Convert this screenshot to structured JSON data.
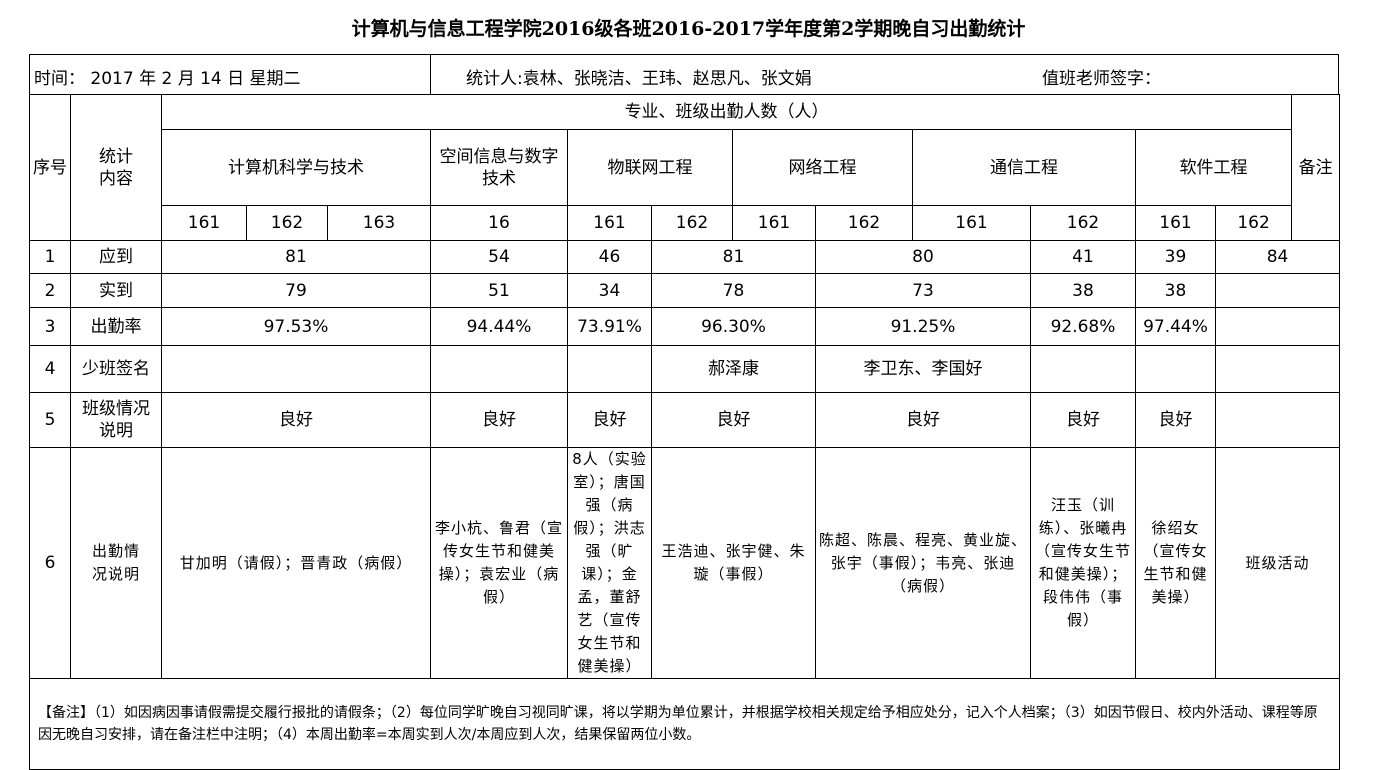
{
  "title": "计算机与信息工程学院2016级各班2016-2017学年度第2学期晚自习出勤统计",
  "info": {
    "time": "时间： 2017 年 2 月 14 日    星期二",
    "counters": "统计人:袁林、张晓洁、王玮、赵思凡、张文娟",
    "teacher_sign": "值班老师签字："
  },
  "header": {
    "index": "序号",
    "content": "统计内容",
    "group": "专业、班级出勤人数（人）",
    "remark": "备注",
    "majors": [
      "计算机科学与技术",
      "空间信息与数字技术",
      "物联网工程",
      "网络工程",
      "通信工程",
      "软件工程"
    ],
    "classes": [
      "161",
      "162",
      "163",
      "16",
      "161",
      "162",
      "161",
      "162",
      "161",
      "162",
      "161",
      "162"
    ]
  },
  "rows": [
    {
      "index": "1",
      "label": "应到",
      "cells": [
        "81",
        "54",
        "46",
        "81",
        "80",
        "41",
        "39",
        "84"
      ]
    },
    {
      "index": "2",
      "label": "实到",
      "cells": [
        "79",
        "51",
        "34",
        "78",
        "73",
        "38",
        "38",
        ""
      ]
    },
    {
      "index": "3",
      "label": "出勤率",
      "cells": [
        "97.53%",
        "94.44%",
        "73.91%",
        "96.30%",
        "91.25%",
        "92.68%",
        "97.44%",
        ""
      ]
    },
    {
      "index": "4",
      "label": "少班签名",
      "cells": [
        "",
        "",
        "",
        "郝泽康",
        "李卫东、李国好",
        "",
        "",
        ""
      ]
    },
    {
      "index": "5",
      "label": "班级情况说明",
      "cells": [
        "良好",
        "良好",
        "良好",
        "良好",
        "良好",
        "良好",
        "良好",
        ""
      ]
    },
    {
      "index": "6",
      "label": "出勤情况说明",
      "cells": [
        "甘加明（请假）；晋青政（病假）",
        "李小杭、鲁君（宣传女生节和健美操）；袁宏业（病假）",
        "8人（实验室）；唐国强（病假）；洪志强（旷课）；金孟，董舒艺（宣传女生节和健美操）",
        "王浩迪、张宇健、朱璇（事假）",
        "陈超、陈晨、程亮、黄业旋、张宇（事假）；韦亮、张迪（病假）",
        "汪玉（训练）、张曦冉（宣传女生节和健美操）；段伟伟（事假）",
        "徐绍女（宣传女生节和健美操）",
        "班级活动"
      ]
    }
  ],
  "notes": "【备注】（1）如因病因事请假需提交履行报批的请假条；（2）每位同学旷晚自习视同旷课，将以学期为单位累计，并根据学校相关规定给予相应处分，记入个人档案；（3）如因节假日、校内外活动、课程等原因无晚自习安排，请在备注栏中注明；（4）本周出勤率=本周实到人次/本周应到人次，结果保留两位小数。"
}
